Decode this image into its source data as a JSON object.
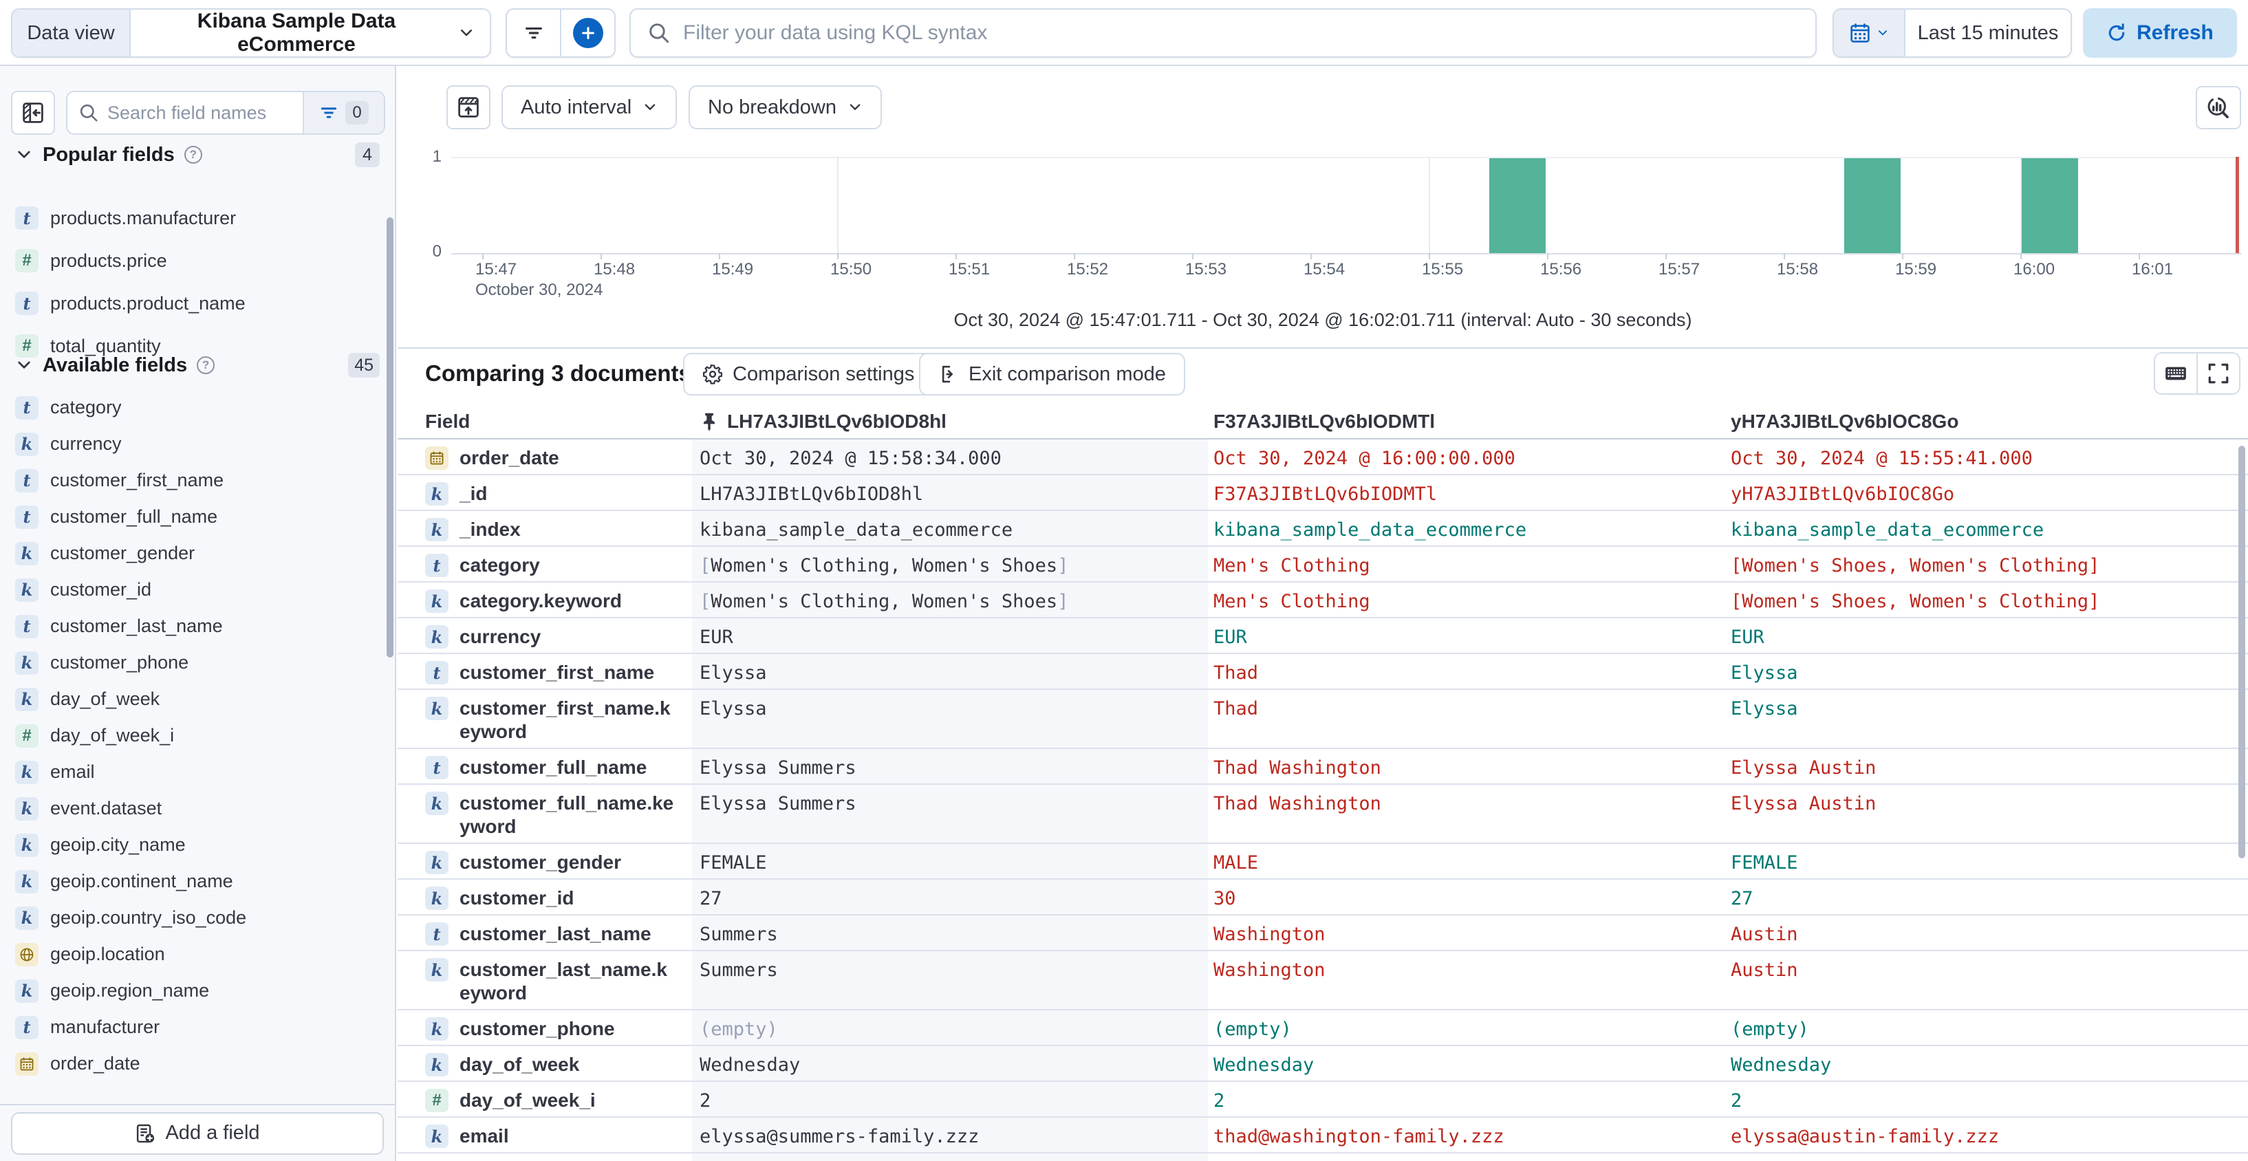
{
  "topbar": {
    "data_view_label": "Data view",
    "data_view_value": "Kibana Sample Data eCommerce",
    "kql_placeholder": "Filter your data using KQL syntax",
    "time_range": "Last 15 minutes",
    "refresh_label": "Refresh"
  },
  "sidebar": {
    "search_placeholder": "Search field names",
    "filter_count": "0",
    "sections": [
      {
        "label": "Popular fields",
        "count": "4",
        "items": [
          {
            "name": "products.manufacturer",
            "type": "text"
          },
          {
            "name": "products.price",
            "type": "number"
          },
          {
            "name": "products.product_name",
            "type": "text"
          },
          {
            "name": "total_quantity",
            "type": "number"
          }
        ]
      },
      {
        "label": "Available fields",
        "count": "45",
        "items": [
          {
            "name": "category",
            "type": "text"
          },
          {
            "name": "currency",
            "type": "keyword"
          },
          {
            "name": "customer_first_name",
            "type": "text"
          },
          {
            "name": "customer_full_name",
            "type": "text"
          },
          {
            "name": "customer_gender",
            "type": "keyword"
          },
          {
            "name": "customer_id",
            "type": "keyword"
          },
          {
            "name": "customer_last_name",
            "type": "text"
          },
          {
            "name": "customer_phone",
            "type": "keyword"
          },
          {
            "name": "day_of_week",
            "type": "keyword"
          },
          {
            "name": "day_of_week_i",
            "type": "number"
          },
          {
            "name": "email",
            "type": "keyword"
          },
          {
            "name": "event.dataset",
            "type": "keyword"
          },
          {
            "name": "geoip.city_name",
            "type": "keyword"
          },
          {
            "name": "geoip.continent_name",
            "type": "keyword"
          },
          {
            "name": "geoip.country_iso_code",
            "type": "keyword"
          },
          {
            "name": "geoip.location",
            "type": "geo"
          },
          {
            "name": "geoip.region_name",
            "type": "keyword"
          },
          {
            "name": "manufacturer",
            "type": "text"
          },
          {
            "name": "order_date",
            "type": "date"
          }
        ]
      }
    ],
    "add_field_label": "Add a field"
  },
  "chart": {
    "interval_label": "Auto interval",
    "breakdown_label": "No breakdown",
    "y_max": "1",
    "y_min": "0",
    "x_ticks": [
      "15:47",
      "15:48",
      "15:49",
      "15:50",
      "15:51",
      "15:52",
      "15:53",
      "15:54",
      "15:55",
      "15:56",
      "15:57",
      "15:58",
      "15:59",
      "16:00",
      "16:01"
    ],
    "gridlines": [
      "15:50",
      "15:55",
      "16:00"
    ],
    "date_label": "October 30, 2024",
    "range_caption": "Oct 30, 2024 @ 15:47:01.711 - Oct 30, 2024 @ 16:02:01.711 (interval: Auto - 30 seconds)"
  },
  "chart_data": {
    "type": "bar",
    "interval": "30 seconds",
    "ylim": [
      0,
      1
    ],
    "x_range": [
      "15:47:00",
      "16:02:00"
    ],
    "bar_color": "#54B399",
    "bars": [
      {
        "time": "15:55:30",
        "count": 1
      },
      {
        "time": "15:58:30",
        "count": 1
      },
      {
        "time": "16:00:00",
        "count": 1
      }
    ]
  },
  "comparison": {
    "title": "Comparing 3 documents",
    "settings_label": "Comparison settings",
    "exit_label": "Exit comparison mode"
  },
  "table": {
    "field_header": "Field",
    "columns": [
      "LH7A3JIBtLQv6bIOD8hl",
      "F37A3JIBtLQv6bIODMTl",
      "yH7A3JIBtLQv6bIOC8Go"
    ],
    "rows": [
      {
        "field": "order_date",
        "type": "date",
        "cells": [
          {
            "t": "Oct 30, 2024 @ 15:58:34.000",
            "s": "base"
          },
          {
            "t": "Oct 30, 2024 @ 16:00:00.000",
            "s": "diff"
          },
          {
            "t": "Oct 30, 2024 @ 15:55:41.000",
            "s": "diff"
          }
        ]
      },
      {
        "field": "_id",
        "type": "keyword",
        "cells": [
          {
            "t": "LH7A3JIBtLQv6bIOD8hl",
            "s": "base"
          },
          {
            "t": "F37A3JIBtLQv6bIODMTl",
            "s": "diff"
          },
          {
            "t": "yH7A3JIBtLQv6bIOC8Go",
            "s": "diff"
          }
        ]
      },
      {
        "field": "_index",
        "type": "keyword",
        "cells": [
          {
            "t": "kibana_sample_data_ecommerce",
            "s": "base"
          },
          {
            "t": "kibana_sample_data_ecommerce",
            "s": "match"
          },
          {
            "t": "kibana_sample_data_ecommerce",
            "s": "match"
          }
        ]
      },
      {
        "field": "category",
        "type": "text",
        "cells": [
          {
            "t": "[Women's Clothing, Women's Shoes]",
            "s": "base"
          },
          {
            "t": "Men's Clothing",
            "s": "diff"
          },
          {
            "t": "[Women's Shoes, Women's Clothing]",
            "s": "diff"
          }
        ]
      },
      {
        "field": "category.keyword",
        "type": "keyword",
        "cells": [
          {
            "t": "[Women's Clothing, Women's Shoes]",
            "s": "base"
          },
          {
            "t": "Men's Clothing",
            "s": "diff"
          },
          {
            "t": "[Women's Shoes, Women's Clothing]",
            "s": "diff"
          }
        ]
      },
      {
        "field": "currency",
        "type": "keyword",
        "cells": [
          {
            "t": "EUR",
            "s": "base"
          },
          {
            "t": "EUR",
            "s": "match"
          },
          {
            "t": "EUR",
            "s": "match"
          }
        ]
      },
      {
        "field": "customer_first_name",
        "type": "text",
        "cells": [
          {
            "t": "Elyssa",
            "s": "base"
          },
          {
            "t": "Thad",
            "s": "diff"
          },
          {
            "t": "Elyssa",
            "s": "match"
          }
        ]
      },
      {
        "field": "customer_first_name.keyword",
        "type": "keyword",
        "wrap": true,
        "cells": [
          {
            "t": "Elyssa",
            "s": "base"
          },
          {
            "t": "Thad",
            "s": "diff"
          },
          {
            "t": "Elyssa",
            "s": "match"
          }
        ]
      },
      {
        "field": "customer_full_name",
        "type": "text",
        "cells": [
          {
            "t": "Elyssa Summers",
            "s": "base"
          },
          {
            "t": "Thad Washington",
            "s": "diff"
          },
          {
            "t": "Elyssa Austin",
            "s": "diff"
          }
        ]
      },
      {
        "field": "customer_full_name.keyword",
        "type": "keyword",
        "wrap": true,
        "cells": [
          {
            "t": "Elyssa Summers",
            "s": "base"
          },
          {
            "t": "Thad Washington",
            "s": "diff"
          },
          {
            "t": "Elyssa Austin",
            "s": "diff"
          }
        ]
      },
      {
        "field": "customer_gender",
        "type": "keyword",
        "cells": [
          {
            "t": "FEMALE",
            "s": "base"
          },
          {
            "t": "MALE",
            "s": "diff"
          },
          {
            "t": "FEMALE",
            "s": "match"
          }
        ]
      },
      {
        "field": "customer_id",
        "type": "keyword",
        "cells": [
          {
            "t": "27",
            "s": "base"
          },
          {
            "t": "30",
            "s": "diff"
          },
          {
            "t": "27",
            "s": "match"
          }
        ]
      },
      {
        "field": "customer_last_name",
        "type": "text",
        "cells": [
          {
            "t": "Summers",
            "s": "base"
          },
          {
            "t": "Washington",
            "s": "diff"
          },
          {
            "t": "Austin",
            "s": "diff"
          }
        ]
      },
      {
        "field": "customer_last_name.keyword",
        "type": "keyword",
        "wrap": true,
        "cells": [
          {
            "t": "Summers",
            "s": "base"
          },
          {
            "t": "Washington",
            "s": "diff"
          },
          {
            "t": "Austin",
            "s": "diff"
          }
        ]
      },
      {
        "field": "customer_phone",
        "type": "keyword",
        "cells": [
          {
            "t": "(empty)",
            "s": "muted"
          },
          {
            "t": "(empty)",
            "s": "match"
          },
          {
            "t": "(empty)",
            "s": "match"
          }
        ]
      },
      {
        "field": "day_of_week",
        "type": "keyword",
        "cells": [
          {
            "t": "Wednesday",
            "s": "base"
          },
          {
            "t": "Wednesday",
            "s": "match"
          },
          {
            "t": "Wednesday",
            "s": "match"
          }
        ]
      },
      {
        "field": "day_of_week_i",
        "type": "number",
        "cells": [
          {
            "t": "2",
            "s": "base"
          },
          {
            "t": "2",
            "s": "match"
          },
          {
            "t": "2",
            "s": "match"
          }
        ]
      },
      {
        "field": "email",
        "type": "keyword",
        "cells": [
          {
            "t": "elyssa@summers-family.zzz",
            "s": "base"
          },
          {
            "t": "thad@washington-family.zzz",
            "s": "diff"
          },
          {
            "t": "elyssa@austin-family.zzz",
            "s": "diff"
          }
        ]
      }
    ]
  }
}
